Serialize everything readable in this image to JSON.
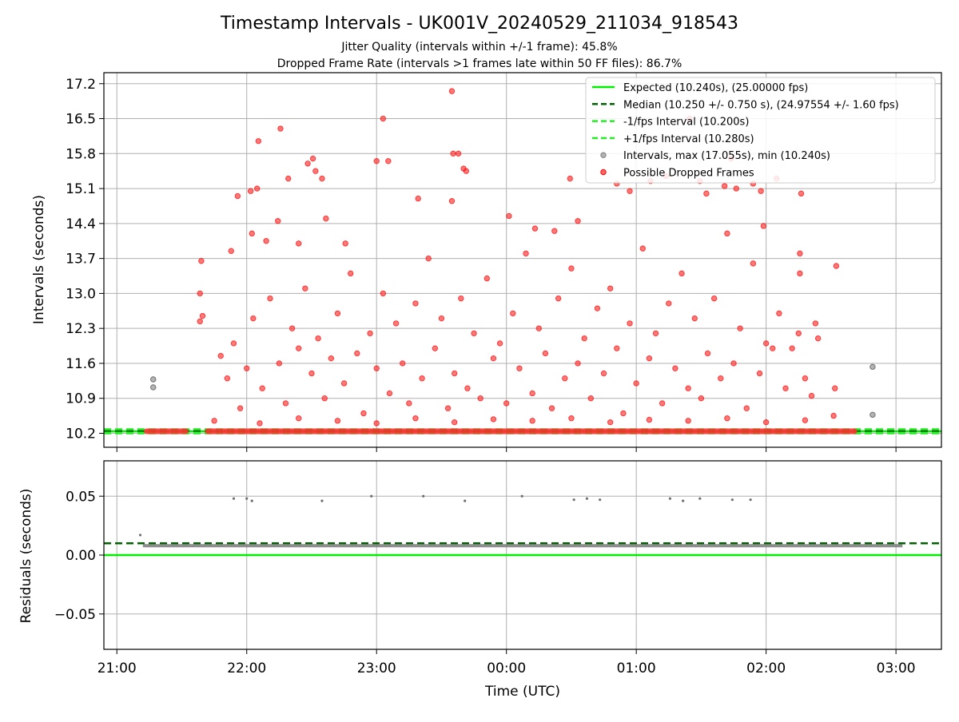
{
  "chart_data": [
    {
      "type": "scatter",
      "title": "Timestamp Intervals - UK001V_20240529_211034_918543",
      "subtitle_lines": [
        "Jitter Quality (intervals within +/-1 frame): 45.8%",
        "Dropped Frame Rate (intervals >1 frames late within 50 FF files): 86.7%"
      ],
      "xlabel": "",
      "ylabel": "Intervals (seconds)",
      "x_unit": "hours since 00:00 UTC",
      "xlim": [
        -3.1,
        3.35
      ],
      "ylim": [
        9.92,
        17.42
      ],
      "yticks": [
        10.2,
        10.9,
        11.6,
        12.3,
        13.0,
        13.7,
        14.4,
        15.1,
        15.8,
        16.5,
        17.2
      ],
      "ytick_labels": [
        "10.2",
        "10.9",
        "11.6",
        "12.3",
        "13.0",
        "13.7",
        "14.4",
        "15.1",
        "15.8",
        "16.5",
        "17.2"
      ],
      "grid": true,
      "legend_position": "top-right",
      "reference_lines": [
        {
          "name": "Expected (10.240s), (25.00000 fps)",
          "y": 10.24,
          "color": "#00ee00",
          "style": "solid"
        },
        {
          "name": "Median (10.250 +/- 0.750 s), (24.97554 +/- 1.60 fps)",
          "y": 10.25,
          "color": "#006400",
          "style": "dashed"
        },
        {
          "name": "-1/fps Interval (10.200s)",
          "y": 10.2,
          "color": "#22ee22",
          "style": "dashed"
        },
        {
          "name": "+1/fps Interval (10.280s)",
          "y": 10.28,
          "color": "#22ee22",
          "style": "dashed"
        }
      ],
      "series": [
        {
          "name": "Intervals, max (17.055s), min (10.240s)",
          "color": "#808080",
          "points": [
            [
              -2.72,
              11.28
            ],
            [
              -2.72,
              11.12
            ],
            [
              2.82,
              11.53
            ],
            [
              2.82,
              10.57
            ]
          ]
        },
        {
          "name": "Possible Dropped Frames",
          "color": "#ff0000",
          "points": [
            [
              -2.36,
              13.0
            ],
            [
              -2.36,
              12.44
            ],
            [
              -2.35,
              13.65
            ],
            [
              -2.34,
              12.55
            ],
            [
              -2.12,
              13.85
            ],
            [
              -2.07,
              14.95
            ],
            [
              -1.97,
              15.05
            ],
            [
              -1.92,
              15.1
            ],
            [
              -1.96,
              14.2
            ],
            [
              -1.91,
              16.05
            ],
            [
              -1.85,
              14.05
            ],
            [
              -1.76,
              14.45
            ],
            [
              -1.74,
              16.3
            ],
            [
              -1.68,
              15.3
            ],
            [
              -1.6,
              14.0
            ],
            [
              -1.53,
              15.6
            ],
            [
              -1.49,
              15.7
            ],
            [
              -1.47,
              15.45
            ],
            [
              -1.42,
              15.3
            ],
            [
              -1.39,
              14.5
            ],
            [
              -1.24,
              14.0
            ],
            [
              -1.0,
              15.65
            ],
            [
              -0.95,
              16.5
            ],
            [
              -0.91,
              15.65
            ],
            [
              -0.68,
              14.9
            ],
            [
              -0.42,
              17.05
            ],
            [
              -0.41,
              15.8
            ],
            [
              -0.37,
              15.8
            ],
            [
              -0.33,
              15.5
            ],
            [
              -0.31,
              15.45
            ],
            [
              -0.42,
              14.85
            ],
            [
              0.02,
              14.55
            ],
            [
              0.22,
              14.3
            ],
            [
              0.37,
              14.25
            ],
            [
              0.49,
              15.3
            ],
            [
              0.55,
              14.45
            ],
            [
              0.85,
              15.2
            ],
            [
              0.95,
              15.05
            ],
            [
              1.11,
              15.25
            ],
            [
              1.23,
              15.35
            ],
            [
              1.41,
              16.5
            ],
            [
              1.49,
              15.25
            ],
            [
              1.54,
              15.0
            ],
            [
              1.68,
              15.15
            ],
            [
              1.73,
              15.7
            ],
            [
              1.77,
              15.1
            ],
            [
              1.9,
              15.2
            ],
            [
              1.96,
              15.05
            ],
            [
              1.98,
              14.35
            ],
            [
              2.08,
              15.3
            ],
            [
              2.27,
              15.0
            ],
            [
              2.26,
              13.8
            ],
            [
              2.54,
              13.55
            ],
            [
              2.26,
              13.4
            ],
            [
              2.25,
              12.2
            ],
            [
              2.2,
              11.9
            ],
            [
              2.3,
              11.3
            ],
            [
              2.35,
              10.95
            ],
            [
              2.53,
              11.1
            ],
            [
              2.52,
              10.55
            ],
            [
              -2.2,
              11.75
            ],
            [
              -2.15,
              11.3
            ],
            [
              -2.1,
              12.0
            ],
            [
              -2.05,
              10.7
            ],
            [
              -2.0,
              11.5
            ],
            [
              -1.95,
              12.5
            ],
            [
              -1.88,
              11.1
            ],
            [
              -1.82,
              12.9
            ],
            [
              -1.75,
              11.6
            ],
            [
              -1.7,
              10.8
            ],
            [
              -1.65,
              12.3
            ],
            [
              -1.6,
              11.9
            ],
            [
              -1.55,
              13.1
            ],
            [
              -1.5,
              11.4
            ],
            [
              -1.45,
              12.1
            ],
            [
              -1.4,
              10.9
            ],
            [
              -1.35,
              11.7
            ],
            [
              -1.3,
              12.6
            ],
            [
              -1.25,
              11.2
            ],
            [
              -1.2,
              13.4
            ],
            [
              -1.15,
              11.8
            ],
            [
              -1.1,
              10.6
            ],
            [
              -1.05,
              12.2
            ],
            [
              -1.0,
              11.5
            ],
            [
              -0.95,
              13.0
            ],
            [
              -0.9,
              11.0
            ],
            [
              -0.85,
              12.4
            ],
            [
              -0.8,
              11.6
            ],
            [
              -0.75,
              10.8
            ],
            [
              -0.7,
              12.8
            ],
            [
              -0.65,
              11.3
            ],
            [
              -0.6,
              13.7
            ],
            [
              -0.55,
              11.9
            ],
            [
              -0.5,
              12.5
            ],
            [
              -0.45,
              10.7
            ],
            [
              -0.4,
              11.4
            ],
            [
              -0.35,
              12.9
            ],
            [
              -0.3,
              11.1
            ],
            [
              -0.25,
              12.2
            ],
            [
              -0.2,
              10.9
            ],
            [
              -0.15,
              13.3
            ],
            [
              -0.1,
              11.7
            ],
            [
              -0.05,
              12.0
            ],
            [
              0.0,
              10.8
            ],
            [
              0.05,
              12.6
            ],
            [
              0.1,
              11.5
            ],
            [
              0.15,
              13.8
            ],
            [
              0.2,
              11.0
            ],
            [
              0.25,
              12.3
            ],
            [
              0.3,
              11.8
            ],
            [
              0.35,
              10.7
            ],
            [
              0.4,
              12.9
            ],
            [
              0.45,
              11.3
            ],
            [
              0.5,
              13.5
            ],
            [
              0.55,
              11.6
            ],
            [
              0.6,
              12.1
            ],
            [
              0.65,
              10.9
            ],
            [
              0.7,
              12.7
            ],
            [
              0.75,
              11.4
            ],
            [
              0.8,
              13.1
            ],
            [
              0.85,
              11.9
            ],
            [
              0.9,
              10.6
            ],
            [
              0.95,
              12.4
            ],
            [
              1.0,
              11.2
            ],
            [
              1.05,
              13.9
            ],
            [
              1.1,
              11.7
            ],
            [
              1.15,
              12.2
            ],
            [
              1.2,
              10.8
            ],
            [
              1.25,
              12.8
            ],
            [
              1.3,
              11.5
            ],
            [
              1.35,
              13.4
            ],
            [
              1.4,
              11.1
            ],
            [
              1.45,
              12.5
            ],
            [
              1.5,
              10.9
            ],
            [
              1.55,
              11.8
            ],
            [
              1.6,
              12.9
            ],
            [
              1.65,
              11.3
            ],
            [
              1.7,
              14.2
            ],
            [
              1.75,
              11.6
            ],
            [
              1.8,
              12.3
            ],
            [
              1.85,
              10.7
            ],
            [
              1.9,
              13.6
            ],
            [
              1.95,
              11.4
            ],
            [
              2.0,
              12.0
            ],
            [
              2.05,
              11.9
            ],
            [
              2.1,
              12.6
            ],
            [
              2.15,
              11.1
            ],
            [
              2.38,
              12.4
            ],
            [
              2.4,
              12.1
            ],
            [
              -2.25,
              10.45
            ],
            [
              -1.9,
              10.4
            ],
            [
              -1.6,
              10.5
            ],
            [
              -1.3,
              10.45
            ],
            [
              -1.0,
              10.4
            ],
            [
              -0.7,
              10.5
            ],
            [
              -0.4,
              10.42
            ],
            [
              -0.1,
              10.48
            ],
            [
              0.2,
              10.45
            ],
            [
              0.5,
              10.5
            ],
            [
              0.8,
              10.42
            ],
            [
              1.1,
              10.47
            ],
            [
              1.4,
              10.45
            ],
            [
              1.7,
              10.5
            ],
            [
              2.0,
              10.42
            ],
            [
              2.3,
              10.46
            ]
          ],
          "baseline_band": {
            "y": 10.24,
            "segments": [
              [
                -2.77,
                -2.47
              ],
              [
                -2.3,
                2.68
              ]
            ]
          }
        }
      ]
    },
    {
      "type": "scatter",
      "title": "",
      "xlabel": "Time (UTC)",
      "ylabel": "Residuals (seconds)",
      "xlim": [
        -3.1,
        3.35
      ],
      "ylim": [
        -0.08,
        0.08
      ],
      "yticks": [
        -0.05,
        0.0,
        0.05
      ],
      "ytick_labels": [
        "−0.05",
        "0.00",
        "0.05"
      ],
      "xticks": [
        -3.0,
        -2.0,
        -1.0,
        0.0,
        1.0,
        2.0,
        3.0
      ],
      "xtick_labels": [
        "21:00",
        "22:00",
        "23:00",
        "00:00",
        "01:00",
        "02:00",
        "03:00"
      ],
      "grid": true,
      "reference_lines": [
        {
          "y": 0.0,
          "color": "#00ee00",
          "style": "solid"
        },
        {
          "y": 0.01,
          "color": "#006400",
          "style": "dashed"
        }
      ],
      "series": [
        {
          "color": "#808080",
          "points": [
            [
              -2.82,
              0.017
            ],
            [
              -2.1,
              0.048
            ],
            [
              -2.0,
              0.048
            ],
            [
              -1.96,
              0.046
            ],
            [
              -1.42,
              0.046
            ],
            [
              -1.04,
              0.05
            ],
            [
              -0.64,
              0.05
            ],
            [
              -0.32,
              0.046
            ],
            [
              0.12,
              0.05
            ],
            [
              0.52,
              0.047
            ],
            [
              0.62,
              0.048
            ],
            [
              0.72,
              0.047
            ],
            [
              1.26,
              0.048
            ],
            [
              1.36,
              0.046
            ],
            [
              1.49,
              0.048
            ],
            [
              1.74,
              0.047
            ],
            [
              1.88,
              0.047
            ]
          ],
          "baseline_band": {
            "y": 0.008,
            "segments": [
              [
                -2.8,
                3.05
              ]
            ]
          }
        }
      ]
    }
  ]
}
